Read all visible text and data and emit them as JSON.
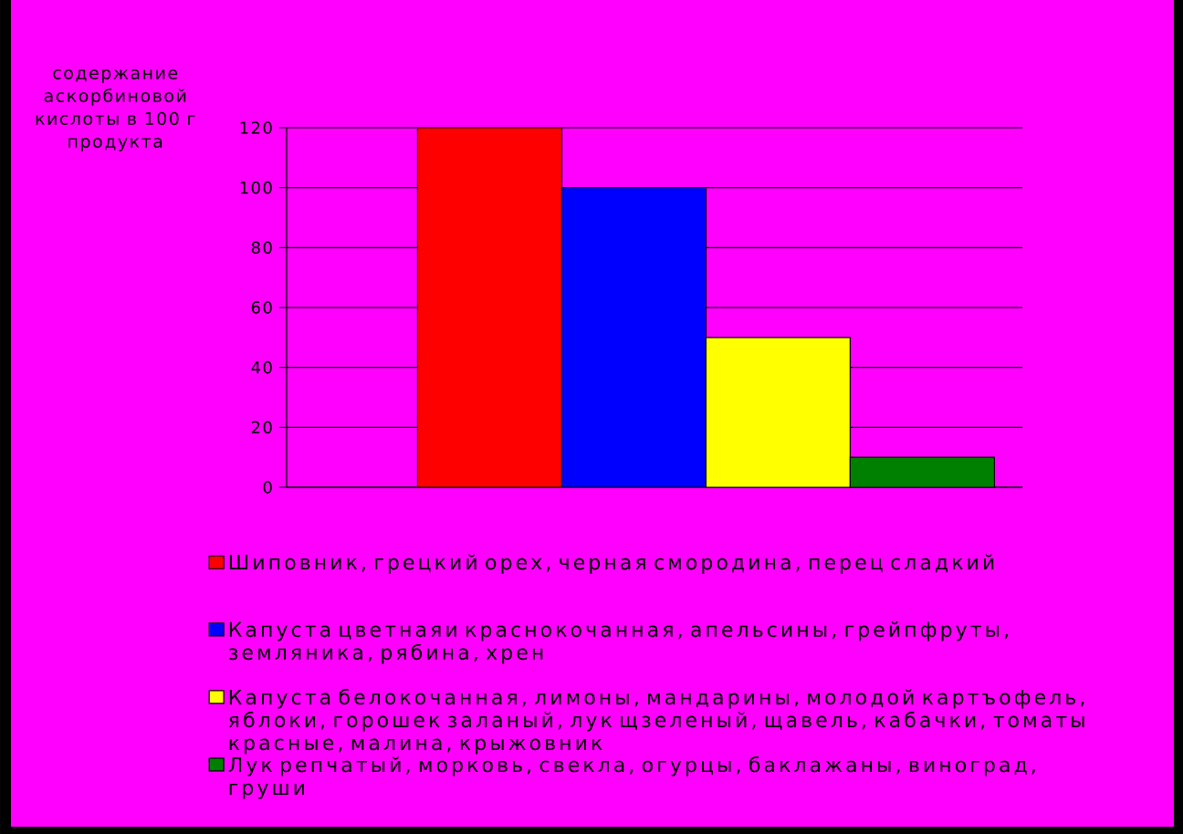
{
  "chart_data": {
    "type": "bar",
    "ylabel": "содержание аскорбиновой кислоты в 100 г продукта",
    "categories": [
      null
    ],
    "series": [
      {
        "name": "Шиповник, грецкий орех, черная смородина, перец сладкий",
        "color": "#ff0000",
        "values": [
          120
        ]
      },
      {
        "name": "Капуста цветнаяи краснокочанная, апельсины, грейпфруты, земляника, рябина, хрен",
        "color": "#0000ff",
        "values": [
          100
        ]
      },
      {
        "name": "Капуста белокочанная, лимоны, мандарины, молодой картъофель, яблоки, горошек заланый, лук щзеленый, щавель, кабачки, томаты красные, малина, крыжовник",
        "color": "#ffff00",
        "values": [
          50
        ]
      },
      {
        "name": "Лук репчатый, морковь, свекла, огурцы, баклажаны, виноград, груши",
        "color": "#008000",
        "values": [
          10
        ]
      }
    ],
    "ylim": [
      0,
      120
    ],
    "yticks": [
      0,
      20,
      40,
      60,
      80,
      100,
      120
    ],
    "grid": "y",
    "legend": "bottom",
    "tick_labels": "y"
  }
}
